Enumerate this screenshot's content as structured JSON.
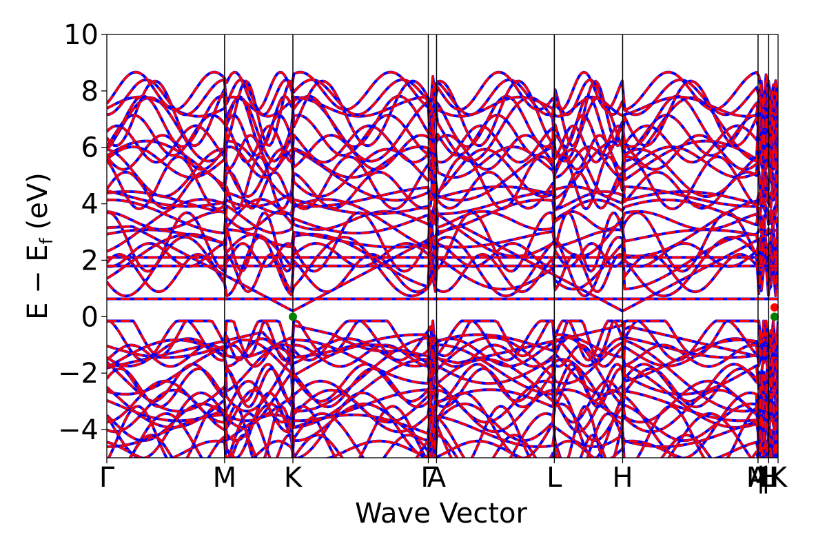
{
  "chart_data": {
    "type": "line",
    "title": "",
    "xlabel": "Wave Vector",
    "ylabel": "E − E",
    "ylabel_sub": "f",
    "ylabel_unit": "(eV)",
    "ylim": [
      -5,
      10
    ],
    "yticks": [
      -4,
      -2,
      0,
      2,
      4,
      6,
      8,
      10
    ],
    "ytick_labels": [
      "−4",
      "−2",
      "0",
      "2",
      "4",
      "6",
      "8",
      "10"
    ],
    "xlim": [
      0,
      5.7
    ],
    "kpoint_boundaries": [
      {
        "position": 0.0,
        "label": "Γ"
      },
      {
        "position": 1.0,
        "label": "M"
      },
      {
        "position": 1.58,
        "label": "K"
      },
      {
        "position": 2.73,
        "label": "Γ"
      },
      {
        "position": 2.8,
        "label": "A"
      },
      {
        "position": 3.8,
        "label": "L"
      },
      {
        "position": 4.38,
        "label": "H"
      },
      {
        "position": 5.53,
        "label": "A"
      },
      {
        "position": 5.53,
        "label": "M"
      },
      {
        "position": 5.62,
        "label": "L"
      },
      {
        "position": 5.62,
        "label": "H"
      },
      {
        "position": 5.7,
        "label": "K"
      }
    ],
    "x_tick_separators": [
      "|",
      "|"
    ],
    "flat_bands": [
      0.63,
      1.8,
      2.1
    ],
    "series": [
      {
        "name": "",
        "color": "#0000ff",
        "style": "solid"
      },
      {
        "name": "",
        "color": "#ff0000",
        "style": "dashed"
      }
    ],
    "band_edge_markers": [
      {
        "x": 1.58,
        "y": 0.0,
        "color": "#008000"
      },
      {
        "x": 5.67,
        "y": 0.0,
        "color": "#008000"
      },
      {
        "x": 5.67,
        "y": 0.33,
        "color": "#ff0000"
      }
    ],
    "grid": false,
    "legend": "none"
  }
}
